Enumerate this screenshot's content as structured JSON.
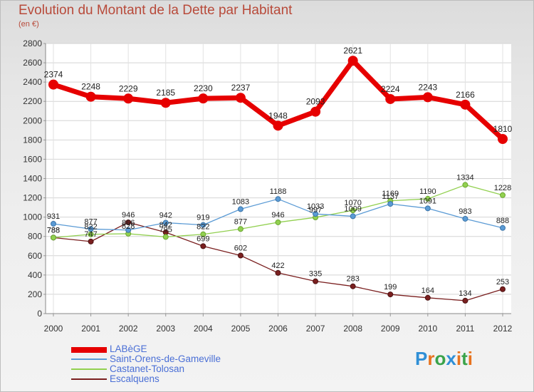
{
  "title": "Evolution du Montant de la Dette par Habitant",
  "unit_label": "(en €)",
  "brand": {
    "letters": [
      "P",
      "r",
      "o",
      "x",
      "i",
      "t",
      "i"
    ],
    "colors": [
      "#2f8fd6",
      "#e8731e",
      "#3aa34a",
      "#2f8fd6",
      "#e8731e",
      "#3aa34a",
      "#e8731e"
    ]
  },
  "chart_data": {
    "type": "line",
    "title": "Evolution du Montant de la Dette par Habitant",
    "ylabel": "(en €)",
    "xlabel": "",
    "x": [
      "2000",
      "2001",
      "2002",
      "2003",
      "2004",
      "2005",
      "2006",
      "2007",
      "2008",
      "2009",
      "2010",
      "2011",
      "2012"
    ],
    "ylim": [
      0,
      2800
    ],
    "yticks": [
      "0",
      "200",
      "400",
      "600",
      "800",
      "1000",
      "1200",
      "1400",
      "1600",
      "1800",
      "2000",
      "2200",
      "2400",
      "2600",
      "2800"
    ],
    "grid": true,
    "legend_position": "bottom-left",
    "series": [
      {
        "name": "LABèGE",
        "color": "#e60000",
        "values": [
          2374,
          2248,
          2229,
          2185,
          2230,
          2237,
          1948,
          2093,
          2621,
          2224,
          2243,
          2166,
          1810
        ],
        "labels": [
          "2374",
          "2248",
          "2229",
          "2185",
          "2230",
          "2237",
          "1948",
          "2093",
          "2621",
          "2224",
          "2243",
          "2166",
          "1810"
        ]
      },
      {
        "name": "Saint-Orens-de-Gameville",
        "color": "#5b9bd5",
        "values": [
          931,
          877,
          866,
          942,
          919,
          1083,
          1188,
          1033,
          1009,
          1137,
          1091,
          983,
          888
        ],
        "labels": [
          "931",
          "877",
          "866",
          "942",
          "919",
          "1083",
          "1188",
          "1033",
          "1009",
          "1137",
          "1091",
          "983",
          "888"
        ]
      },
      {
        "name": "Castanet-Tolosan",
        "color": "#92d050",
        "values": [
          788,
          822,
          828,
          795,
          822,
          877,
          946,
          997,
          1070,
          1169,
          1190,
          1334,
          1228
        ],
        "labels": [
          "788",
          "822",
          "828",
          "795",
          "822",
          "877",
          "946",
          "997",
          "1070",
          "1169",
          "1190",
          "1334",
          "1228"
        ]
      },
      {
        "name": "Escalquens",
        "color": "#7a1f1f",
        "values": [
          788,
          747,
          946,
          842,
          699,
          602,
          422,
          335,
          283,
          199,
          164,
          134,
          253
        ],
        "labels": [
          "788",
          "747",
          "946",
          "842",
          "699",
          "602",
          "422",
          "335",
          "283",
          "199",
          "164",
          "134",
          "253"
        ]
      }
    ]
  }
}
